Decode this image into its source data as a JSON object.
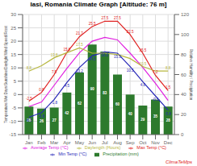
{
  "chart_data": {
    "type": "bar",
    "title": "Iasi, Romania Climate Graph [Altitude: 76 m]",
    "categories": [
      "Jan",
      "Feb",
      "Mar",
      "Apr",
      "May",
      "Jun",
      "Jul",
      "Aug",
      "Sep",
      "Oct",
      "Nov",
      "Dec"
    ],
    "y_label": "Temperature/Wet Days/Sunshine/Daylight/Wind Speed/Frost",
    "y2_label": "Relative Humidity / Precipitation",
    "ylim": [
      -15,
      30
    ],
    "yticks": [
      -15,
      -10,
      -5,
      0,
      5,
      10,
      15,
      20,
      25,
      30
    ],
    "y2lim": [
      0,
      120
    ],
    "y2ticks": [
      0,
      20,
      40,
      60,
      80,
      100,
      120
    ],
    "grid": true,
    "legend": "bottom",
    "annotations": [
      "ClimaTeMps"
    ],
    "series": [
      {
        "name": "Precipitation (mm)",
        "type": "bar",
        "axis": "y2",
        "color": "#2d7a2d",
        "values": [
          28,
          26,
          27,
          42,
          62,
          90,
          83,
          60,
          40,
          29,
          35,
          28
        ],
        "data_labels": true
      },
      {
        "name": "Min Temp (°C)",
        "type": "line",
        "color": "#2828b8",
        "values": [
          -8.5,
          -6.8,
          -1.8,
          4.5,
          10.2,
          14.5,
          16.0,
          15.5,
          10.5,
          4.8,
          -0.5,
          -5.8
        ],
        "data_labels": true,
        "value_labels": [
          "-8.5",
          "-6.8",
          "-1.8",
          "4.5",
          "10.2",
          "14.5",
          "16.0",
          "15.5",
          "10.5",
          "4.8",
          "-0.5",
          "-5.8"
        ]
      },
      {
        "name": "Max Temp (°C)",
        "type": "line",
        "color": "#e02020",
        "values": [
          -2.5,
          0.8,
          7.5,
          15.8,
          21.7,
          25.5,
          27.5,
          27.5,
          22.5,
          15.5,
          7.2,
          1.5
        ],
        "data_labels": true
      },
      {
        "name": "Average Temp (°C)",
        "type": "line",
        "color": "#e020e0",
        "values": [
          -4.5,
          -2.8,
          3.5,
          9.8,
          15.7,
          20.0,
          21.4,
          20.5,
          15.5,
          10.2,
          4.2,
          -2.2
        ],
        "data_labels": false
      },
      {
        "name": "Daylength (Hours)",
        "type": "line",
        "color": "#b8b840",
        "values": [
          8.8,
          10.8,
          13.8,
          15.7,
          17.5,
          15.5,
          15.5,
          15.0,
          13.5,
          10.5,
          8.8,
          8.8
        ],
        "data_labels": true,
        "value_labels": [
          "8.8",
          null,
          "13.8",
          null,
          "17.5",
          null,
          null,
          null,
          null,
          "10.5",
          null,
          "8.8"
        ]
      }
    ]
  }
}
